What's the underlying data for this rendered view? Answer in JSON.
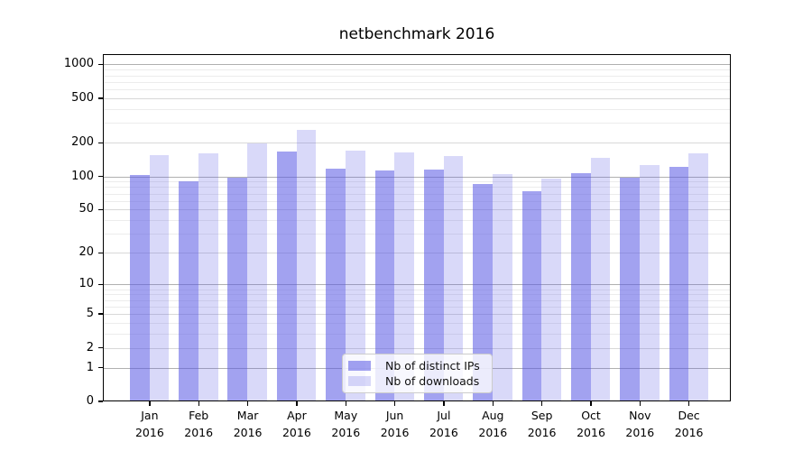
{
  "title": "netbenchmark 2016",
  "colors": {
    "bar_ips": "rgba(90,90,228,0.56)",
    "bar_downloads": "rgba(90,90,228,0.23)",
    "grid_major": "#b0b0b0",
    "grid_sub": "#d8d8d8",
    "grid_minor": "#ececec",
    "spine": "#000000"
  },
  "legend": {
    "items": [
      {
        "label": "Nb of distinct IPs",
        "color_key": "bar_ips"
      },
      {
        "label": "Nb of downloads",
        "color_key": "bar_downloads"
      }
    ]
  },
  "chart_data": {
    "type": "bar",
    "title": "netbenchmark 2016",
    "categories": [
      "Jan",
      "Feb",
      "Mar",
      "Apr",
      "May",
      "Jun",
      "Jul",
      "Aug",
      "Sep",
      "Oct",
      "Nov",
      "Dec"
    ],
    "year": "2016",
    "series": [
      {
        "name": "Nb of distinct IPs",
        "values": [
          103,
          91,
          97,
          166,
          118,
          112,
          115,
          86,
          74,
          106,
          98,
          122
        ]
      },
      {
        "name": "Nb of downloads",
        "values": [
          155,
          161,
          198,
          260,
          169,
          164,
          151,
          104,
          95,
          147,
          126,
          162
        ]
      }
    ],
    "xlabel": "",
    "ylabel": "",
    "yscale": "log10(value+1)",
    "ylim": [
      0,
      1270
    ],
    "yticks_labeled": [
      0,
      1,
      2,
      5,
      10,
      20,
      50,
      100,
      200,
      500,
      1000
    ],
    "ygrid_major": [
      1,
      10,
      100,
      1000
    ],
    "ygrid_sub": [
      2,
      5,
      20,
      50,
      200,
      500
    ],
    "ygrid_minor": [
      3,
      4,
      6,
      7,
      8,
      9,
      30,
      40,
      60,
      70,
      80,
      90,
      300,
      400,
      600,
      700,
      800,
      900
    ],
    "grid": true,
    "legend_position": "lower center"
  }
}
